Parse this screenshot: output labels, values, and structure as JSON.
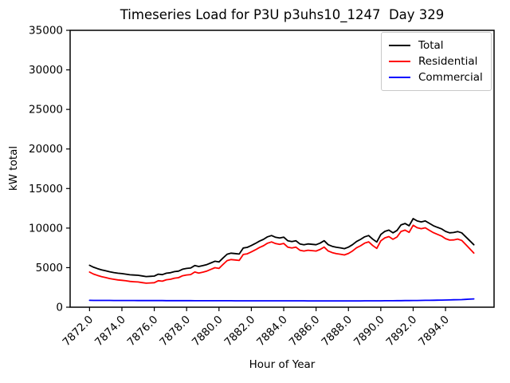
{
  "chart_data": {
    "type": "line",
    "title": "Timeseries Load for P3U p3uhs10_1247  Day 329",
    "xlabel": "Hour of Year",
    "ylabel": "kW total",
    "xlim": [
      7870.8,
      7897.0
    ],
    "ylim": [
      0,
      35000
    ],
    "grid": false,
    "legend_position": "upper-right",
    "x_ticks": [
      7872,
      7874,
      7876,
      7878,
      7880,
      7882,
      7884,
      7886,
      7888,
      7890,
      7892,
      7894
    ],
    "x_tick_labels": [
      "7872.0",
      "7874.0",
      "7876.0",
      "7878.0",
      "7880.0",
      "7882.0",
      "7884.0",
      "7886.0",
      "7888.0",
      "7890.0",
      "7892.0",
      "7894.0"
    ],
    "y_ticks": [
      0,
      5000,
      10000,
      15000,
      20000,
      25000,
      30000,
      35000
    ],
    "x": [
      7872.0,
      7872.25,
      7872.5,
      7872.75,
      7873.0,
      7873.25,
      7873.5,
      7873.75,
      7874.0,
      7874.25,
      7874.5,
      7874.75,
      7875.0,
      7875.25,
      7875.5,
      7875.75,
      7876.0,
      7876.25,
      7876.5,
      7876.75,
      7877.0,
      7877.25,
      7877.5,
      7877.75,
      7878.0,
      7878.25,
      7878.5,
      7878.75,
      7879.0,
      7879.25,
      7879.5,
      7879.75,
      7880.0,
      7880.25,
      7880.5,
      7880.75,
      7881.0,
      7881.25,
      7881.5,
      7881.75,
      7882.0,
      7882.25,
      7882.5,
      7882.75,
      7883.0,
      7883.25,
      7883.5,
      7883.75,
      7884.0,
      7884.25,
      7884.5,
      7884.75,
      7885.0,
      7885.25,
      7885.5,
      7885.75,
      7886.0,
      7886.25,
      7886.5,
      7886.75,
      7887.0,
      7887.25,
      7887.5,
      7887.75,
      7888.0,
      7888.25,
      7888.5,
      7888.75,
      7889.0,
      7889.25,
      7889.5,
      7889.75,
      7890.0,
      7890.25,
      7890.5,
      7890.75,
      7891.0,
      7891.25,
      7891.5,
      7891.75,
      7892.0,
      7892.25,
      7892.5,
      7892.75,
      7893.0,
      7893.25,
      7893.5,
      7893.75,
      7894.0,
      7894.25,
      7894.5,
      7894.75,
      7895.0,
      7895.25,
      7895.5,
      7895.75
    ],
    "series": [
      {
        "name": "Total",
        "color": "#000000",
        "values": [
          5300,
          5050,
          4870,
          4720,
          4600,
          4480,
          4380,
          4300,
          4250,
          4180,
          4100,
          4060,
          4030,
          3950,
          3870,
          3900,
          3930,
          4180,
          4120,
          4300,
          4360,
          4500,
          4560,
          4800,
          4900,
          4950,
          5270,
          5140,
          5250,
          5390,
          5600,
          5810,
          5720,
          6220,
          6700,
          6830,
          6780,
          6720,
          7480,
          7560,
          7800,
          8060,
          8350,
          8570,
          8900,
          9060,
          8840,
          8740,
          8860,
          8400,
          8300,
          8400,
          8000,
          7900,
          8000,
          7950,
          7900,
          8100,
          8400,
          7900,
          7700,
          7570,
          7500,
          7400,
          7600,
          7900,
          8300,
          8570,
          8900,
          9060,
          8600,
          8240,
          9200,
          9580,
          9740,
          9400,
          9700,
          10400,
          10580,
          10300,
          11200,
          10900,
          10780,
          10900,
          10600,
          10300,
          10100,
          9900,
          9580,
          9400,
          9440,
          9560,
          9400,
          8900,
          8400,
          7900
        ]
      },
      {
        "name": "Residential",
        "color": "#ff0000",
        "values": [
          4435,
          4188,
          4010,
          3862,
          3744,
          3626,
          3528,
          3450,
          3402,
          3334,
          3255,
          3217,
          3188,
          3110,
          3031,
          3062,
          3094,
          3345,
          3287,
          3468,
          3530,
          3671,
          3733,
          3974,
          4075,
          4127,
          4448,
          4319,
          4430,
          4572,
          4783,
          4994,
          4905,
          5406,
          5887,
          6018,
          5969,
          5910,
          6670,
          6751,
          6992,
          7252,
          7543,
          7763,
          8094,
          8254,
          8035,
          7935,
          8056,
          7596,
          7497,
          7597,
          7198,
          7098,
          7199,
          7149,
          7100,
          7300,
          7600,
          7101,
          6901,
          6771,
          6702,
          6602,
          6802,
          7101,
          7500,
          7769,
          8098,
          8256,
          7794,
          7432,
          8390,
          8767,
          8924,
          8580,
          8876,
          9572,
          9747,
          9462,
          10356,
          10050,
          9923,
          10036,
          9728,
          9419,
          9210,
          9000,
          8669,
          8478,
          8506,
          8613,
          8440,
          7915,
          7385,
          6850
        ]
      },
      {
        "name": "Commercial",
        "color": "#0000ff",
        "values": [
          865,
          862,
          860,
          858,
          856,
          854,
          852,
          850,
          848,
          846,
          845,
          843,
          842,
          840,
          839,
          838,
          836,
          835,
          833,
          832,
          830,
          829,
          827,
          826,
          825,
          823,
          822,
          821,
          820,
          818,
          817,
          816,
          815,
          814,
          813,
          812,
          811,
          810,
          810,
          809,
          808,
          808,
          807,
          807,
          806,
          806,
          805,
          805,
          804,
          804,
          803,
          803,
          802,
          802,
          801,
          801,
          800,
          800,
          800,
          799,
          799,
          799,
          798,
          798,
          798,
          799,
          800,
          801,
          802,
          804,
          806,
          808,
          810,
          813,
          816,
          820,
          824,
          828,
          833,
          838,
          844,
          850,
          857,
          864,
          872,
          881,
          890,
          900,
          911,
          922,
          934,
          947,
          960,
          985,
          1015,
          1050
        ]
      }
    ]
  }
}
